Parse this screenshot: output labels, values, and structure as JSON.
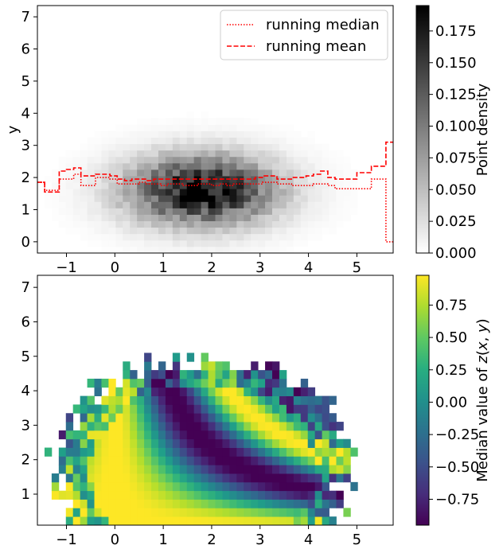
{
  "chart_data": [
    {
      "type": "heatmap",
      "title": "",
      "xlabel": "",
      "ylabel": "y",
      "xlim": [
        -1.6,
        5.75
      ],
      "ylim": [
        -0.35,
        7.35
      ],
      "x_ticks": [
        -1,
        0,
        1,
        2,
        3,
        4,
        5
      ],
      "y_ticks": [
        0,
        1,
        2,
        3,
        4,
        5,
        6,
        7
      ],
      "density_peak": {
        "x": 1.8,
        "y": 1.6,
        "sx": 1.05,
        "sy": 0.75,
        "max": 0.19
      },
      "colorbar": {
        "label": "Point density",
        "colormap": "gray_r",
        "range": [
          0.0,
          0.195
        ],
        "ticks": [
          "0.000",
          "0.025",
          "0.050",
          "0.075",
          "0.100",
          "0.125",
          "0.150",
          "0.175"
        ],
        "tick_values": [
          0.0,
          0.025,
          0.05,
          0.075,
          0.1,
          0.125,
          0.15,
          0.175
        ]
      },
      "legend": {
        "position": "upper right",
        "entries": [
          {
            "label": "running median",
            "style": "dotted",
            "color": "#ff0000"
          },
          {
            "label": "running mean",
            "style": "dashed",
            "color": "#ff0000"
          }
        ]
      },
      "series": [
        {
          "name": "running median",
          "x": [
            -1.6,
            -1.45,
            -1.3,
            -1.15,
            -1.0,
            -0.85,
            -0.7,
            -0.55,
            -0.4,
            -0.25,
            -0.1,
            0.05,
            0.2,
            0.35,
            0.5,
            0.65,
            0.8,
            0.95,
            1.1,
            1.25,
            1.4,
            1.55,
            1.7,
            1.85,
            2.0,
            2.15,
            2.3,
            2.45,
            2.6,
            2.75,
            2.9,
            3.05,
            3.2,
            3.35,
            3.5,
            3.65,
            3.8,
            3.95,
            4.1,
            4.25,
            4.4,
            4.55,
            4.7,
            4.85,
            5.0,
            5.15,
            5.3,
            5.45,
            5.6,
            5.75
          ],
          "y": [
            1.85,
            1.6,
            1.6,
            1.95,
            1.95,
            2.1,
            1.75,
            1.75,
            2.0,
            2.0,
            1.95,
            1.8,
            1.8,
            1.8,
            1.85,
            1.8,
            1.8,
            1.75,
            1.8,
            1.8,
            1.75,
            1.75,
            1.8,
            1.8,
            1.75,
            1.8,
            1.75,
            1.8,
            1.8,
            1.8,
            1.8,
            1.85,
            1.85,
            1.8,
            1.8,
            1.75,
            1.75,
            1.75,
            1.8,
            1.8,
            1.75,
            1.65,
            1.65,
            1.65,
            1.65,
            1.65,
            1.95,
            1.95,
            0.0,
            0.0
          ]
        },
        {
          "name": "running mean",
          "x": [
            -1.6,
            -1.45,
            -1.3,
            -1.15,
            -1.0,
            -0.85,
            -0.7,
            -0.55,
            -0.4,
            -0.25,
            -0.1,
            0.05,
            0.2,
            0.35,
            0.5,
            0.65,
            0.8,
            0.95,
            1.1,
            1.25,
            1.4,
            1.55,
            1.7,
            1.85,
            2.0,
            2.15,
            2.3,
            2.45,
            2.6,
            2.75,
            2.9,
            3.05,
            3.2,
            3.35,
            3.5,
            3.65,
            3.8,
            3.95,
            4.1,
            4.25,
            4.4,
            4.55,
            4.7,
            4.85,
            5.0,
            5.15,
            5.3,
            5.45,
            5.6,
            5.75
          ],
          "y": [
            1.85,
            1.55,
            1.55,
            2.2,
            2.25,
            2.3,
            2.05,
            2.05,
            2.1,
            2.1,
            2.05,
            1.95,
            1.9,
            1.95,
            1.95,
            1.9,
            1.95,
            1.95,
            1.95,
            1.95,
            1.95,
            1.95,
            1.95,
            1.95,
            1.95,
            1.95,
            1.95,
            1.95,
            1.95,
            1.95,
            2.0,
            2.05,
            2.05,
            1.95,
            1.95,
            2.0,
            2.0,
            2.05,
            2.1,
            2.2,
            2.0,
            1.95,
            1.95,
            1.95,
            2.15,
            2.15,
            2.35,
            2.35,
            3.1,
            3.1
          ]
        }
      ]
    },
    {
      "type": "heatmap",
      "title": "",
      "xlabel": "",
      "ylabel": "",
      "xlim": [
        -1.6,
        5.75
      ],
      "ylim": [
        0.1,
        7.35
      ],
      "x_ticks": [
        -1,
        0,
        1,
        2,
        3,
        4,
        5
      ],
      "y_ticks": [
        1,
        2,
        3,
        4,
        5,
        6,
        7
      ],
      "value_formula": "cos(x*y/1.5)",
      "colorbar": {
        "label": "Median value of $z(x,y)$",
        "colormap": "viridis",
        "range": [
          -0.95,
          0.98
        ],
        "ticks": [
          "−0.75",
          "−0.50",
          "−0.25",
          "0.00",
          "0.25",
          "0.50",
          "0.75"
        ],
        "tick_values": [
          -0.75,
          -0.5,
          -0.25,
          0.0,
          0.25,
          0.5,
          0.75
        ]
      }
    }
  ]
}
